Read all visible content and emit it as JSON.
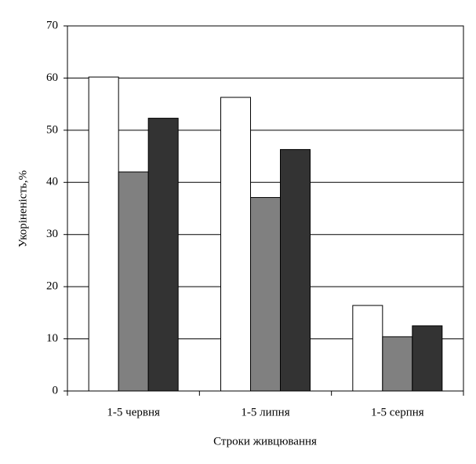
{
  "chart_data": {
    "type": "bar",
    "x_label": "Строки живцювання",
    "y_label": "Укоріненість,%",
    "categories": [
      "1-5 червня",
      "1-5 липня",
      "1-5 серпня"
    ],
    "series": [
      {
        "color": "#ffffff",
        "values": [
          60.2,
          56.3,
          16.4
        ]
      },
      {
        "color": "#808080",
        "values": [
          42,
          37.1,
          10.4
        ]
      },
      {
        "color": "#333333",
        "values": [
          52.3,
          46.3,
          12.5
        ]
      }
    ],
    "ylim": [
      0,
      70
    ],
    "yticks": [
      0,
      10,
      20,
      30,
      40,
      50,
      60,
      70
    ],
    "grid": true
  }
}
